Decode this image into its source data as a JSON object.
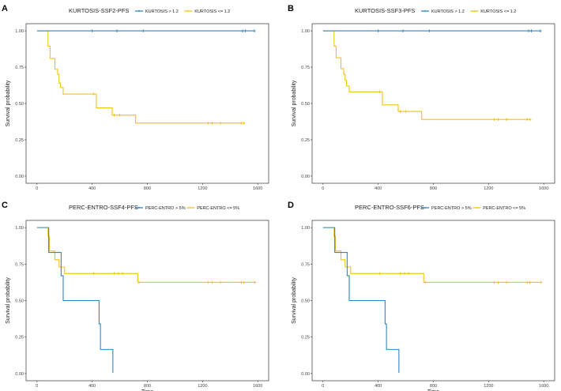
{
  "chart_data": [
    {
      "type": "line",
      "panel": "A",
      "title": "KURTOSIS-SSF2-PFS",
      "xlabel": "",
      "ylabel": "Survival probability",
      "xlim": [
        0,
        1600
      ],
      "ylim": [
        0,
        1
      ],
      "xticks": [
        "0",
        "400",
        "800",
        "1200",
        "1600"
      ],
      "yticks": [
        "0.00",
        "0.25",
        "0.50",
        "0.75",
        "1.00"
      ],
      "legend_position": "top",
      "series": [
        {
          "name": "KURTOSIS > 1.2",
          "color": "#2E86C1",
          "x": [
            0,
            1575
          ],
          "y": [
            1.0,
            1.0
          ],
          "censor_x": [
            400,
            580,
            770,
            1490,
            1510,
            1575
          ],
          "censor_y": [
            1.0,
            1.0,
            1.0,
            1.0,
            1.0,
            1.0
          ]
        },
        {
          "name": "KURTOSIS <= 1.2",
          "color": "#F1C40F",
          "x": [
            0,
            80,
            95,
            130,
            150,
            160,
            170,
            190,
            430,
            510,
            545,
            590,
            715,
            1500
          ],
          "y": [
            1.0,
            0.895,
            0.81,
            0.735,
            0.7,
            0.64,
            0.61,
            0.565,
            0.47,
            0.47,
            0.42,
            0.42,
            0.365,
            0.365
          ],
          "censor_x": [
            410,
            560,
            600,
            1240,
            1270,
            1330,
            1480,
            1500
          ],
          "censor_y": [
            0.565,
            0.42,
            0.42,
            0.365,
            0.365,
            0.365,
            0.365,
            0.365
          ]
        }
      ]
    },
    {
      "type": "line",
      "panel": "B",
      "title": "KURTOSIS-SSF3-PFS",
      "xlabel": "",
      "ylabel": "Survival probability",
      "xlim": [
        0,
        1600
      ],
      "ylim": [
        0,
        1
      ],
      "xticks": [
        "0",
        "400",
        "800",
        "1200",
        "1600"
      ],
      "yticks": [
        "0.00",
        "0.25",
        "0.50",
        "0.75",
        "1.00"
      ],
      "legend_position": "top",
      "series": [
        {
          "name": "KURTOSIS > 1.2",
          "color": "#2E86C1",
          "x": [
            0,
            1575
          ],
          "y": [
            1.0,
            1.0
          ],
          "censor_x": [
            400,
            580,
            770,
            1490,
            1510,
            1575
          ],
          "censor_y": [
            1.0,
            1.0,
            1.0,
            1.0,
            1.0,
            1.0
          ]
        },
        {
          "name": "KURTOSIS <= 1.2",
          "color": "#F1C40F",
          "x": [
            0,
            80,
            95,
            130,
            150,
            160,
            170,
            190,
            430,
            510,
            545,
            590,
            715,
            1500
          ],
          "y": [
            1.0,
            0.895,
            0.815,
            0.74,
            0.7,
            0.66,
            0.62,
            0.58,
            0.49,
            0.49,
            0.445,
            0.445,
            0.39,
            0.39
          ],
          "censor_x": [
            410,
            560,
            600,
            1240,
            1270,
            1330,
            1480,
            1500
          ],
          "censor_y": [
            0.58,
            0.445,
            0.445,
            0.39,
            0.39,
            0.39,
            0.39,
            0.39
          ]
        }
      ]
    },
    {
      "type": "line",
      "panel": "C",
      "title": "PERC-ENTRO-SSF4-PFS",
      "xlabel": "Time",
      "ylabel": "Survival probability",
      "xlim": [
        0,
        1600
      ],
      "ylim": [
        0,
        1
      ],
      "xticks": [
        "0",
        "400",
        "800",
        "1200",
        "1600"
      ],
      "yticks": [
        "0.00",
        "0.25",
        "0.50",
        "0.75",
        "1.00"
      ],
      "legend_position": "top",
      "series": [
        {
          "name": "PERC-ENTRO > 5%",
          "color": "#2E86C1",
          "x": [
            0,
            85,
            90,
            175,
            190,
            450,
            460,
            545,
            550
          ],
          "y": [
            1.0,
            0.83,
            0.83,
            0.67,
            0.5,
            0.34,
            0.165,
            0.165,
            0.005
          ],
          "censor_x": [],
          "censor_y": []
        },
        {
          "name": "PERC-ENTRO <= 5%",
          "color": "#F1C40F",
          "x": [
            0,
            80,
            90,
            130,
            160,
            200,
            730,
            1580
          ],
          "y": [
            1.0,
            0.94,
            0.84,
            0.78,
            0.73,
            0.685,
            0.625,
            0.625
          ],
          "censor_x": [
            410,
            560,
            590,
            620,
            740,
            1240,
            1270,
            1330,
            1480,
            1500,
            1580
          ],
          "censor_y": [
            0.685,
            0.685,
            0.685,
            0.685,
            0.625,
            0.625,
            0.625,
            0.625,
            0.625,
            0.625,
            0.625
          ]
        }
      ]
    },
    {
      "type": "line",
      "panel": "D",
      "title": "PERC-ENTRO-SSF6-PFS",
      "xlabel": "Time",
      "ylabel": "Survival probability",
      "xlim": [
        0,
        1600
      ],
      "ylim": [
        0,
        1
      ],
      "xticks": [
        "0",
        "400",
        "800",
        "1200",
        "1600"
      ],
      "yticks": [
        "0.00",
        "0.25",
        "0.50",
        "0.75",
        "1.00"
      ],
      "legend_position": "top",
      "series": [
        {
          "name": "PERC-ENTRO > 5%",
          "color": "#2E86C1",
          "x": [
            0,
            85,
            90,
            175,
            190,
            450,
            460,
            545,
            550
          ],
          "y": [
            1.0,
            0.83,
            0.83,
            0.67,
            0.5,
            0.34,
            0.165,
            0.165,
            0.005
          ],
          "censor_x": [],
          "censor_y": []
        },
        {
          "name": "PERC-ENTRO <= 5%",
          "color": "#F1C40F",
          "x": [
            0,
            80,
            90,
            130,
            160,
            200,
            730,
            1580
          ],
          "y": [
            1.0,
            0.94,
            0.84,
            0.78,
            0.73,
            0.685,
            0.625,
            0.625
          ],
          "censor_x": [
            410,
            560,
            590,
            620,
            740,
            1240,
            1270,
            1330,
            1480,
            1500,
            1580
          ],
          "censor_y": [
            0.685,
            0.685,
            0.685,
            0.685,
            0.625,
            0.625,
            0.625,
            0.625,
            0.625,
            0.625,
            0.625
          ]
        }
      ]
    }
  ]
}
